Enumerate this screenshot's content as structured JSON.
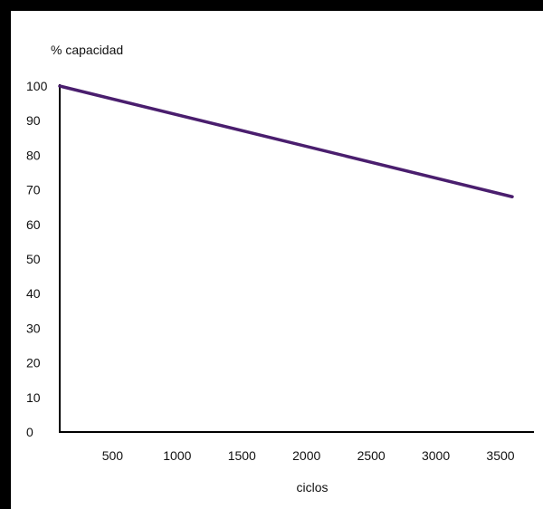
{
  "chart_data": {
    "type": "line",
    "title": "",
    "ylabel": "% capacidad",
    "xlabel": "ciclos",
    "xlim": [
      0,
      3500
    ],
    "ylim": [
      0,
      100
    ],
    "x_ticks": [
      500,
      1000,
      1500,
      2000,
      2500,
      3000,
      3500
    ],
    "y_ticks": [
      0,
      10,
      20,
      30,
      40,
      50,
      60,
      70,
      80,
      90,
      100
    ],
    "grid": false,
    "series": [
      {
        "color": "#4a1e6e",
        "x": [
          0,
          3500
        ],
        "y": [
          100,
          68
        ]
      }
    ]
  },
  "colors": {
    "frame": "#000000",
    "axis": "#000000",
    "line": "#4a1e6e"
  }
}
